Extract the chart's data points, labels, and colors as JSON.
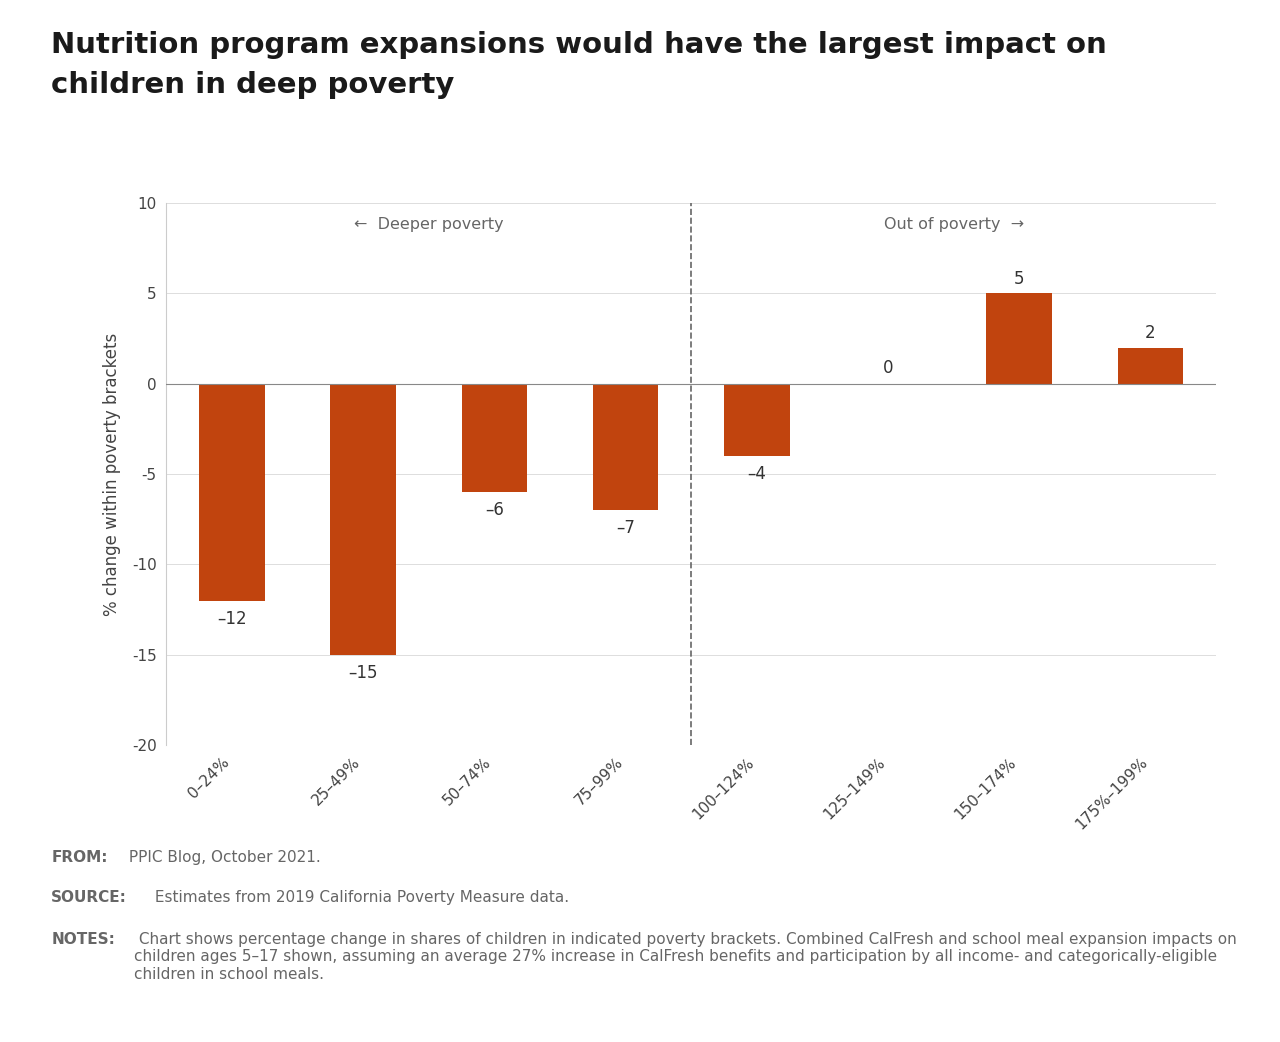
{
  "title_line1": "Nutrition program expansions would have the largest impact on",
  "title_line2": "children in deep poverty",
  "categories": [
    "0–24%",
    "25–49%",
    "50–74%",
    "75–99%",
    "100–124%",
    "125–149%",
    "150–174%",
    "175%–199%"
  ],
  "values": [
    -12,
    -15,
    -6,
    -7,
    -4,
    0,
    5,
    2
  ],
  "bar_color": "#c1440e",
  "ylabel": "% change within poverty brackets",
  "ylim": [
    -20,
    10
  ],
  "yticks": [
    -20,
    -15,
    -10,
    -5,
    0,
    5,
    10
  ],
  "deeper_poverty_label": "←  Deeper poverty",
  "out_of_poverty_label": "Out of poverty  →",
  "background_color": "#ffffff",
  "footer_bg_color": "#ebebeb",
  "from_label": "FROM:",
  "from_text": " PPIC Blog, October 2021.",
  "source_label": "SOURCE:",
  "source_text": " Estimates from 2019 California Poverty Measure data.",
  "notes_label": "NOTES:",
  "notes_text": " Chart shows percentage change in shares of children in indicated poverty brackets. Combined CalFresh and school meal expansion impacts on children ages 5–17 shown, assuming an average 27% increase in CalFresh benefits and participation by all income- and categorically-eligible children in school meals.",
  "title_fontsize": 21,
  "label_fontsize": 12,
  "tick_fontsize": 11,
  "annotation_fontsize": 12,
  "footer_fontsize": 11,
  "annot_labels": [
    "–12",
    "–15",
    "–6",
    "–7",
    "–4",
    "0",
    "5",
    "2"
  ]
}
